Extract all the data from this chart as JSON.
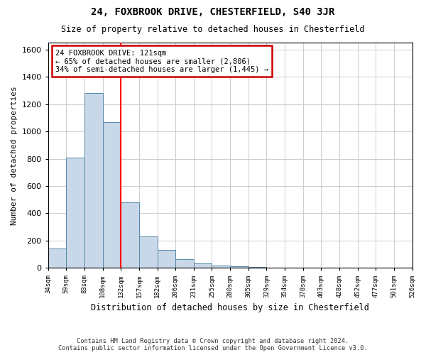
{
  "title1": "24, FOXBROOK DRIVE, CHESTERFIELD, S40 3JR",
  "title2": "Size of property relative to detached houses in Chesterfield",
  "xlabel": "Distribution of detached houses by size in Chesterfield",
  "ylabel": "Number of detached properties",
  "footer1": "Contains HM Land Registry data © Crown copyright and database right 2024.",
  "footer2": "Contains public sector information licensed under the Open Government Licence v3.0.",
  "bin_labels": [
    "34sqm",
    "59sqm",
    "83sqm",
    "108sqm",
    "132sqm",
    "157sqm",
    "182sqm",
    "206sqm",
    "231sqm",
    "255sqm",
    "280sqm",
    "305sqm",
    "329sqm",
    "354sqm",
    "378sqm",
    "403sqm",
    "428sqm",
    "452sqm",
    "477sqm",
    "501sqm",
    "526sqm"
  ],
  "bar_values": [
    140,
    810,
    1280,
    1070,
    480,
    230,
    130,
    65,
    35,
    20,
    10,
    6,
    4,
    2,
    1,
    1,
    1,
    0,
    0,
    0
  ],
  "bar_color": "#c8d8e8",
  "bar_edge_color": "#5588aa",
  "annotation_text": "24 FOXBROOK DRIVE: 121sqm\n← 65% of detached houses are smaller (2,806)\n34% of semi-detached houses are larger (1,445) →",
  "annotation_box_color": "#cc0000",
  "red_line_bin": 3,
  "ylim": [
    0,
    1650
  ],
  "yticks": [
    0,
    200,
    400,
    600,
    800,
    1000,
    1200,
    1400,
    1600
  ],
  "grid_color": "#cccccc",
  "bg_color": "#ffffff"
}
